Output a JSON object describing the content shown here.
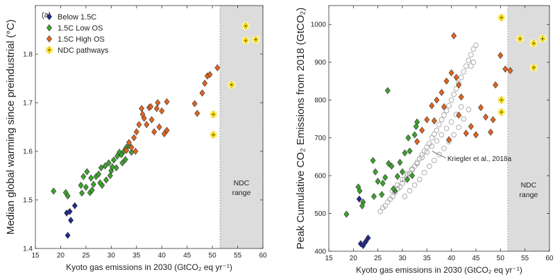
{
  "chart_data": [
    {
      "type": "scatter",
      "panel_label": "(a)",
      "xlabel": "Kyoto gas emissions in 2030 (GtCO₂ eq yr⁻¹)",
      "ylabel": "Median global warming since preindustrial (°C)",
      "xlim": [
        15,
        60
      ],
      "ylim": [
        1.4,
        1.9
      ],
      "xticks": [
        "15",
        "20",
        "25",
        "30",
        "35",
        "40",
        "45",
        "50",
        "55",
        "60"
      ],
      "yticks": [
        "1.4",
        "1.5",
        "1.6",
        "1.7",
        "1.8"
      ],
      "shaded_range": {
        "label_line1": "NDC",
        "label_line2": "range",
        "x_from": 51.5,
        "x_to": 60,
        "color": "#dcdcdc"
      },
      "legend": {
        "position": "top-left"
      },
      "series": [
        {
          "name": "Below 1.5C",
          "marker": "diamond",
          "color": "#1f2a8a",
          "x": [
            21.2,
            22.8,
            21.8,
            22.0,
            21.4
          ],
          "y": [
            1.473,
            1.488,
            1.476,
            1.458,
            1.427
          ]
        },
        {
          "name": "1.5C Low OS",
          "marker": "diamond",
          "color": "#3da12e",
          "x": [
            18.6,
            21.0,
            21.4,
            24.0,
            24.5,
            25.0,
            25.2,
            25.8,
            26.0,
            26.5,
            27.0,
            27.5,
            28.0,
            28.2,
            28.8,
            29.0,
            29.5,
            30.0,
            30.5,
            31.0,
            31.2,
            31.6,
            32.0,
            32.2,
            32.5,
            32.8,
            33.0,
            33.5,
            34.0,
            24.2,
            26.2,
            27.8,
            29.8,
            30.2
          ],
          "y": [
            1.518,
            1.515,
            1.508,
            1.53,
            1.548,
            1.526,
            1.558,
            1.515,
            1.545,
            1.532,
            1.548,
            1.553,
            1.566,
            1.53,
            1.57,
            1.541,
            1.576,
            1.56,
            1.582,
            1.566,
            1.59,
            1.598,
            1.593,
            1.576,
            1.6,
            1.583,
            1.608,
            1.612,
            1.598,
            1.514,
            1.52,
            1.535,
            1.55,
            1.568
          ]
        },
        {
          "name": "1.5C High OS",
          "marker": "diamond",
          "color": "#e0641e",
          "x": [
            33.0,
            33.5,
            34.0,
            34.5,
            35.0,
            35.5,
            36.0,
            36.5,
            37.0,
            37.5,
            38.0,
            38.5,
            39.0,
            39.5,
            40.0,
            40.5,
            41.0,
            34.8,
            36.2,
            37.8,
            39.2,
            46.5,
            47.0,
            48.0,
            48.5,
            49.0,
            49.5,
            51.0,
            41.0
          ],
          "y": [
            1.602,
            1.618,
            1.608,
            1.628,
            1.64,
            1.655,
            1.688,
            1.668,
            1.655,
            1.69,
            1.665,
            1.64,
            1.688,
            1.65,
            1.683,
            1.636,
            1.643,
            1.6,
            1.676,
            1.692,
            1.7,
            1.698,
            1.678,
            1.72,
            1.74,
            1.755,
            1.758,
            1.772,
            1.702
          ]
        },
        {
          "name": "NDC pathways",
          "marker": "star",
          "color": "#ffe600",
          "x": [
            50.2,
            50.2,
            53.8,
            56.6,
            56.6,
            58.6
          ],
          "y": [
            1.676,
            1.634,
            1.737,
            1.858,
            1.828,
            1.83
          ]
        }
      ]
    },
    {
      "type": "scatter",
      "xlabel": "Kyoto gas emissions in 2030 (GtCO₂ eq yr⁻¹)",
      "ylabel": "Peak Cumulative CO₂ Emissions from 2018 (GtCO₂)",
      "xlim": [
        15,
        60
      ],
      "ylim": [
        400,
        1050
      ],
      "xticks": [
        "15",
        "20",
        "25",
        "30",
        "35",
        "40",
        "45",
        "50",
        "55",
        "60"
      ],
      "yticks": [
        "400",
        "500",
        "600",
        "700",
        "800",
        "900",
        "1000"
      ],
      "shaded_range": {
        "label_line1": "NDC",
        "label_line2": "range",
        "x_from": 51.5,
        "x_to": 60,
        "color": "#dcdcdc"
      },
      "annotation": {
        "text": "Kriegler et al., 2018a",
        "x": 35.5,
        "y": 650
      },
      "series": [
        {
          "name": "Kriegler et al., 2018a",
          "marker": "circle-open",
          "color": "#9a9a9a",
          "x": [
            25.5,
            26.0,
            26.5,
            27.0,
            27.5,
            28.0,
            28.5,
            29.0,
            29.5,
            30.0,
            30.5,
            31.0,
            31.5,
            32.0,
            32.5,
            33.0,
            33.5,
            34.0,
            34.5,
            35.0,
            35.5,
            36.0,
            36.5,
            37.0,
            37.5,
            38.0,
            38.5,
            39.0,
            39.5,
            40.0,
            40.5,
            41.0,
            41.5,
            42.0,
            42.5,
            43.0,
            43.5,
            44.0,
            44.5,
            45.0,
            28.0,
            29.0,
            30.0,
            31.0,
            32.0,
            33.0,
            34.0,
            35.0,
            36.0,
            37.0,
            38.0,
            39.0,
            40.0,
            41.0,
            42.0,
            30.5,
            31.5,
            32.5,
            33.5,
            34.5,
            35.5,
            36.5,
            37.5,
            38.5,
            39.5,
            40.5,
            41.5,
            42.5,
            43.5,
            44.0,
            44.5
          ],
          "y": [
            505,
            515,
            520,
            530,
            538,
            545,
            555,
            565,
            570,
            580,
            590,
            600,
            605,
            615,
            625,
            635,
            645,
            655,
            665,
            675,
            685,
            700,
            710,
            720,
            735,
            748,
            760,
            772,
            785,
            800,
            815,
            830,
            845,
            860,
            875,
            890,
            905,
            920,
            935,
            945,
            560,
            575,
            590,
            605,
            618,
            632,
            648,
            662,
            678,
            692,
            708,
            725,
            742,
            762,
            782,
            545,
            560,
            575,
            590,
            608,
            625,
            640,
            656,
            672,
            690,
            708,
            728,
            750,
            775,
            890,
            900
          ]
        },
        {
          "name": "Below 1.5C",
          "marker": "diamond",
          "color": "#1f2a8a",
          "x": [
            21.2,
            21.5,
            22.0,
            22.5,
            23.0
          ],
          "y": [
            538,
            420,
            415,
            425,
            435
          ]
        },
        {
          "name": "1.5C Low OS",
          "marker": "diamond",
          "color": "#3da12e",
          "x": [
            18.6,
            21.0,
            21.3,
            22.0,
            24.0,
            24.5,
            25.0,
            25.8,
            26.5,
            27.0,
            27.8,
            28.5,
            29.0,
            29.5,
            30.0,
            31.0,
            31.5,
            32.0,
            32.5,
            33.0,
            21.8,
            24.2,
            26.0,
            27.2,
            28.2,
            30.5,
            31.2,
            32.8
          ],
          "y": [
            498,
            570,
            560,
            530,
            640,
            610,
            585,
            550,
            595,
            825,
            625,
            560,
            598,
            635,
            610,
            590,
            665,
            600,
            708,
            742,
            520,
            545,
            580,
            632,
            565,
            660,
            700,
            730
          ]
        },
        {
          "name": "1.5C High OS",
          "marker": "diamond",
          "color": "#e0641e",
          "x": [
            33.0,
            34.0,
            35.0,
            36.0,
            37.0,
            38.0,
            38.5,
            39.0,
            40.0,
            40.5,
            41.0,
            41.5,
            42.0,
            43.0,
            44.0,
            45.0,
            46.0,
            47.0,
            48.0,
            48.5,
            49.0,
            50.0,
            51.0,
            52.0,
            36.5,
            39.5,
            41.5
          ],
          "y": [
            690,
            720,
            748,
            785,
            800,
            820,
            782,
            850,
            872,
            970,
            860,
            840,
            808,
            712,
            730,
            708,
            780,
            755,
            715,
            748,
            840,
            918,
            882,
            878,
            745,
            695,
            760
          ]
        },
        {
          "name": "NDC pathways",
          "marker": "star",
          "color": "#ffe600",
          "x": [
            50.2,
            50.2,
            50.2,
            54.0,
            56.8,
            56.8,
            58.6
          ],
          "y": [
            1018,
            800,
            768,
            962,
            950,
            886,
            962
          ]
        }
      ]
    }
  ]
}
